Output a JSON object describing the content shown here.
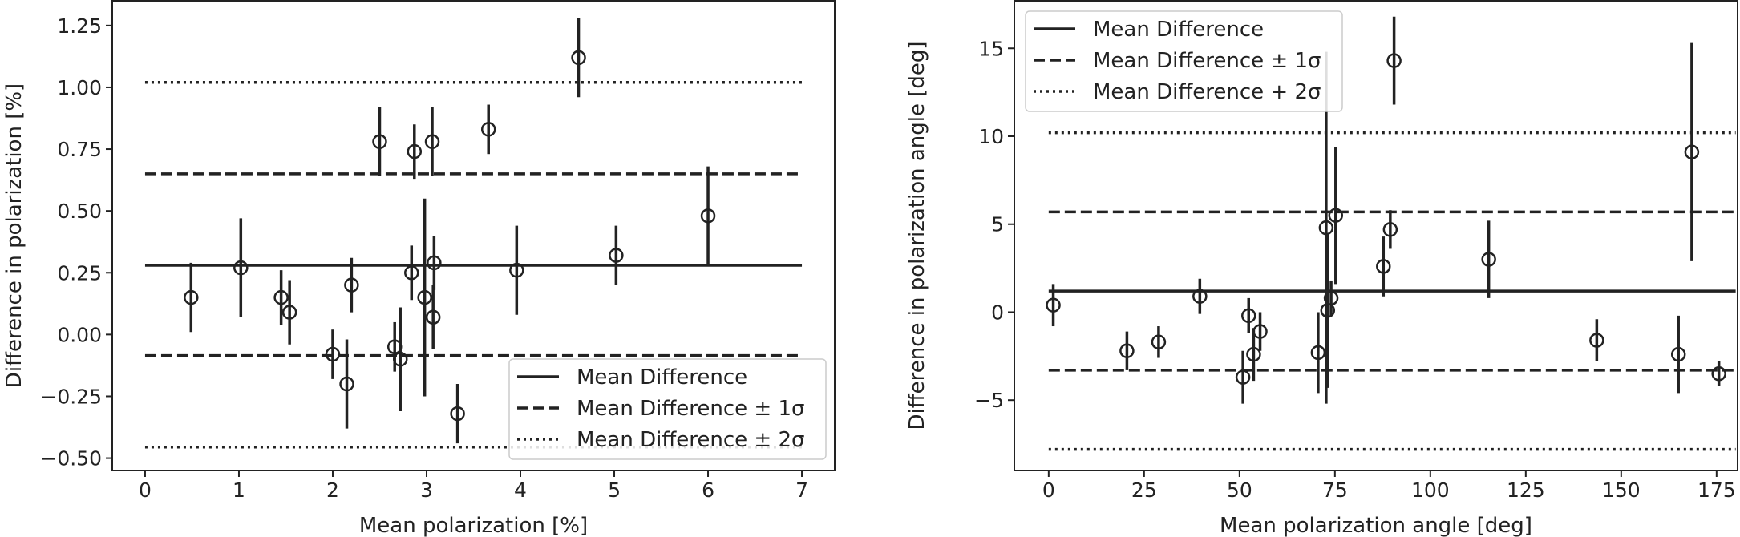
{
  "chart_data": [
    {
      "type": "scatter",
      "xlabel": "Mean polarization [%]",
      "ylabel": "Difference in polarization [%]",
      "xlim": [
        -0.35,
        7.35
      ],
      "ylim": [
        -0.55,
        1.35
      ],
      "xticks": [
        0,
        1,
        2,
        3,
        4,
        5,
        6,
        7
      ],
      "xtick_labels": [
        "0",
        "1",
        "2",
        "3",
        "4",
        "5",
        "6",
        "7"
      ],
      "yticks": [
        -0.5,
        -0.25,
        0.0,
        0.25,
        0.5,
        0.75,
        1.0,
        1.25
      ],
      "ytick_labels": [
        "−0.50",
        "−0.25",
        "0.00",
        "0.25",
        "0.50",
        "0.75",
        "1.00",
        "1.25"
      ],
      "hlines": [
        {
          "y": 0.28,
          "style": "solid",
          "legend": "Mean Difference"
        },
        {
          "y": 0.65,
          "style": "dashed",
          "legend": "Mean Difference ± 1σ"
        },
        {
          "y": -0.085,
          "style": "dashed"
        },
        {
          "y": 1.02,
          "style": "dotted",
          "legend": "Mean Difference ± 2σ"
        },
        {
          "y": -0.455,
          "style": "dotted"
        }
      ],
      "hline_range": [
        0,
        7
      ],
      "legend": {
        "position": "lower-right",
        "entries": [
          {
            "label": "Mean Difference",
            "style": "solid"
          },
          {
            "label": "Mean Difference ± 1σ",
            "style": "dashed"
          },
          {
            "label": "Mean Difference ± 2σ",
            "style": "dotted"
          }
        ]
      },
      "points": [
        {
          "x": 0.49,
          "y": 0.15,
          "err": 0.14
        },
        {
          "x": 1.02,
          "y": 0.27,
          "err": 0.2
        },
        {
          "x": 1.45,
          "y": 0.15,
          "err": 0.11
        },
        {
          "x": 1.54,
          "y": 0.09,
          "err": 0.13
        },
        {
          "x": 2.0,
          "y": -0.08,
          "err": 0.1
        },
        {
          "x": 2.15,
          "y": -0.2,
          "err": 0.18
        },
        {
          "x": 2.2,
          "y": 0.2,
          "err": 0.11
        },
        {
          "x": 2.5,
          "y": 0.78,
          "err": 0.14
        },
        {
          "x": 2.66,
          "y": -0.05,
          "err": 0.1
        },
        {
          "x": 2.72,
          "y": -0.1,
          "err": 0.21
        },
        {
          "x": 2.84,
          "y": 0.25,
          "err": 0.11
        },
        {
          "x": 2.87,
          "y": 0.74,
          "err": 0.11
        },
        {
          "x": 2.98,
          "y": 0.15,
          "err": 0.4
        },
        {
          "x": 3.06,
          "y": 0.78,
          "err": 0.14
        },
        {
          "x": 3.07,
          "y": 0.07,
          "err": 0.13
        },
        {
          "x": 3.08,
          "y": 0.29,
          "err": 0.11
        },
        {
          "x": 3.33,
          "y": -0.32,
          "err": 0.12
        },
        {
          "x": 3.66,
          "y": 0.83,
          "err": 0.1
        },
        {
          "x": 3.96,
          "y": 0.26,
          "err": 0.18
        },
        {
          "x": 4.62,
          "y": 1.12,
          "err": 0.16
        },
        {
          "x": 5.02,
          "y": 0.32,
          "err": 0.12
        },
        {
          "x": 6.0,
          "y": 0.48,
          "err": 0.2
        }
      ]
    },
    {
      "type": "scatter",
      "xlabel": "Mean polarization angle [deg]",
      "ylabel": "Difference in polarization angle [deg]",
      "xlim": [
        -9,
        180.5
      ],
      "ylim": [
        -9,
        17.7
      ],
      "xticks": [
        0,
        25,
        50,
        75,
        100,
        125,
        150,
        175
      ],
      "xtick_labels": [
        "0",
        "25",
        "50",
        "75",
        "100",
        "125",
        "150",
        "175"
      ],
      "yticks": [
        -5,
        0,
        5,
        10,
        15
      ],
      "ytick_labels": [
        "−5",
        "0",
        "5",
        "10",
        "15"
      ],
      "hlines": [
        {
          "y": 1.2,
          "style": "solid",
          "legend": "Mean Difference"
        },
        {
          "y": 5.7,
          "style": "dashed",
          "legend": "Mean Difference ± 1σ"
        },
        {
          "y": -3.3,
          "style": "dashed"
        },
        {
          "y": 10.2,
          "style": "dotted",
          "legend": "Mean Difference + 2σ"
        },
        {
          "y": -7.8,
          "style": "dotted"
        }
      ],
      "hline_range": [
        0,
        180
      ],
      "legend": {
        "position": "top-left",
        "entries": [
          {
            "label": "Mean Difference",
            "style": "solid"
          },
          {
            "label": "Mean Difference ± 1σ",
            "style": "dashed"
          },
          {
            "label": "Mean Difference + 2σ",
            "style": "dotted"
          }
        ]
      },
      "points": [
        {
          "x": 1.2,
          "y": 0.4,
          "err": 1.2
        },
        {
          "x": 20.5,
          "y": -2.2,
          "err": 1.1
        },
        {
          "x": 28.8,
          "y": -1.7,
          "err": 0.9
        },
        {
          "x": 39.6,
          "y": 0.9,
          "err": 1.0
        },
        {
          "x": 50.9,
          "y": -3.7,
          "err": 1.5
        },
        {
          "x": 52.4,
          "y": -0.2,
          "err": 1.0
        },
        {
          "x": 53.7,
          "y": -2.4,
          "err": 1.5
        },
        {
          "x": 55.4,
          "y": -1.1,
          "err": 1.1
        },
        {
          "x": 70.6,
          "y": -2.3,
          "err": 2.3
        },
        {
          "x": 72.7,
          "y": 4.8,
          "err": 10.0
        },
        {
          "x": 73.1,
          "y": 0.1,
          "err": 4.4
        },
        {
          "x": 74.0,
          "y": 0.8,
          "err": 1.0
        },
        {
          "x": 75.2,
          "y": 5.5,
          "err": 3.9
        },
        {
          "x": 87.7,
          "y": 2.6,
          "err": 1.7
        },
        {
          "x": 89.5,
          "y": 4.7,
          "err": 1.1
        },
        {
          "x": 90.5,
          "y": 14.3,
          "err": 2.5
        },
        {
          "x": 115.3,
          "y": 3.0,
          "err": 2.2
        },
        {
          "x": 143.6,
          "y": -1.6,
          "err": 1.2
        },
        {
          "x": 165.0,
          "y": -2.4,
          "err": 2.2
        },
        {
          "x": 168.5,
          "y": 9.1,
          "err": 6.2
        },
        {
          "x": 175.6,
          "y": -3.5,
          "err": 0.7
        }
      ]
    }
  ]
}
